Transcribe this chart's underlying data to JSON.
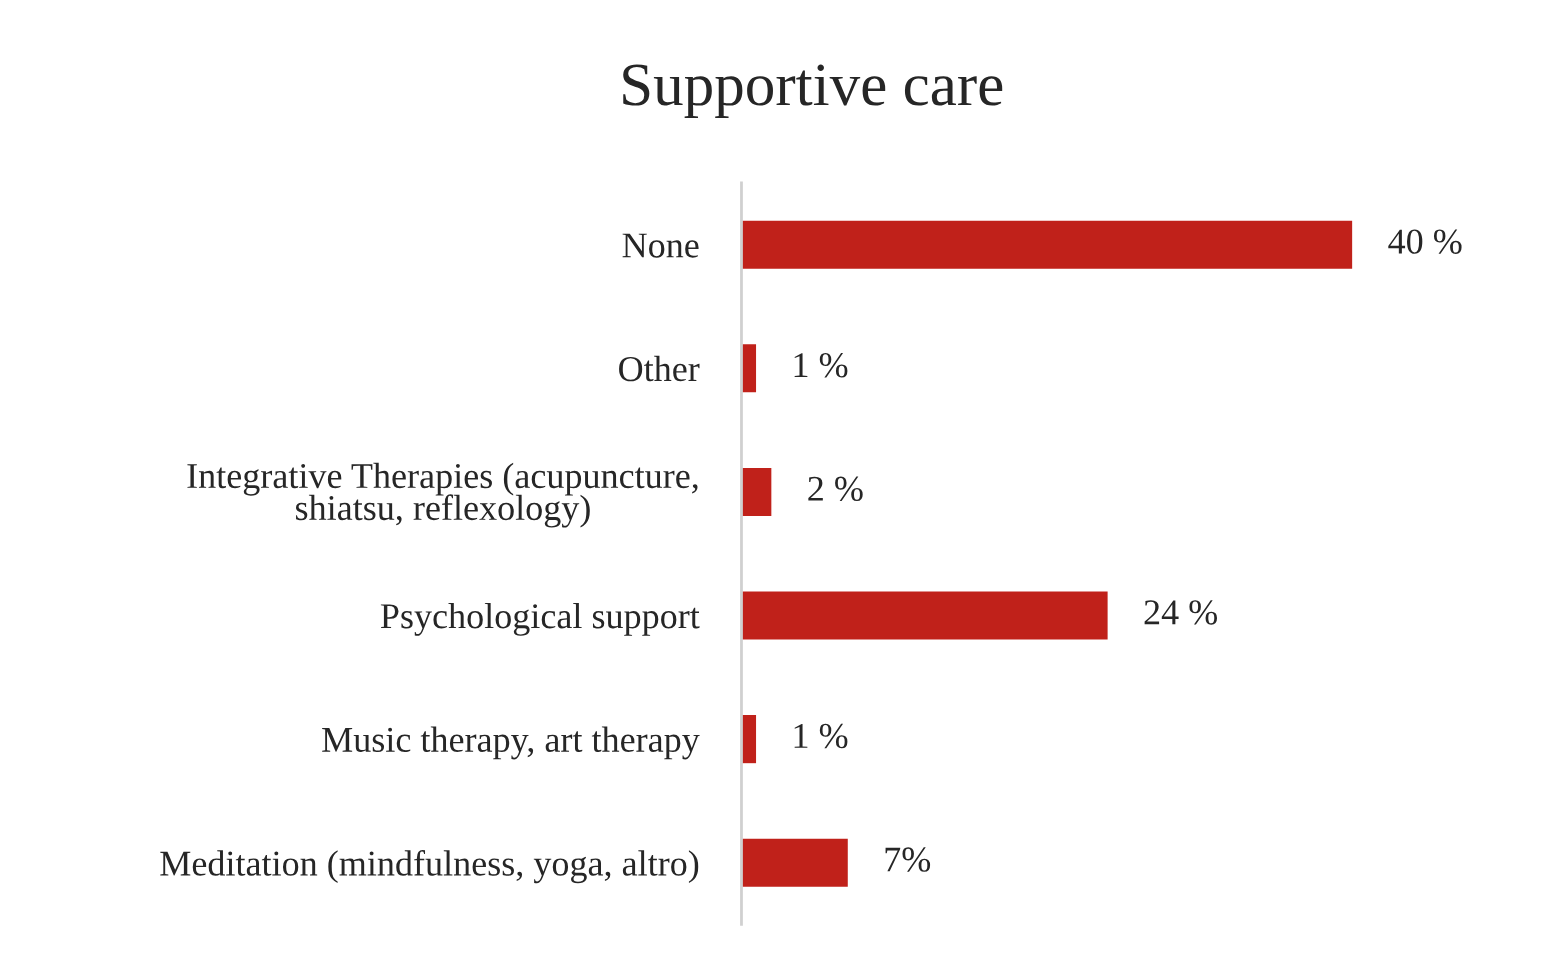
{
  "chart_data": {
    "type": "bar",
    "title": "Supportive care",
    "orientation": "horizontal",
    "categories": [
      "None",
      "Other",
      "Integrative Therapies (acupuncture,\nshiatsu, reflexology)",
      "Psychological support",
      "Music therapy, art therapy",
      "Meditation (mindfulness, yoga, altro)"
    ],
    "values": [
      40,
      1,
      2,
      24,
      1,
      7
    ],
    "value_labels": [
      "40 %",
      "1 %",
      "2 %",
      "24 %",
      "1 %",
      "7%"
    ],
    "color": "#c0211a",
    "grid": false,
    "legend": false
  }
}
